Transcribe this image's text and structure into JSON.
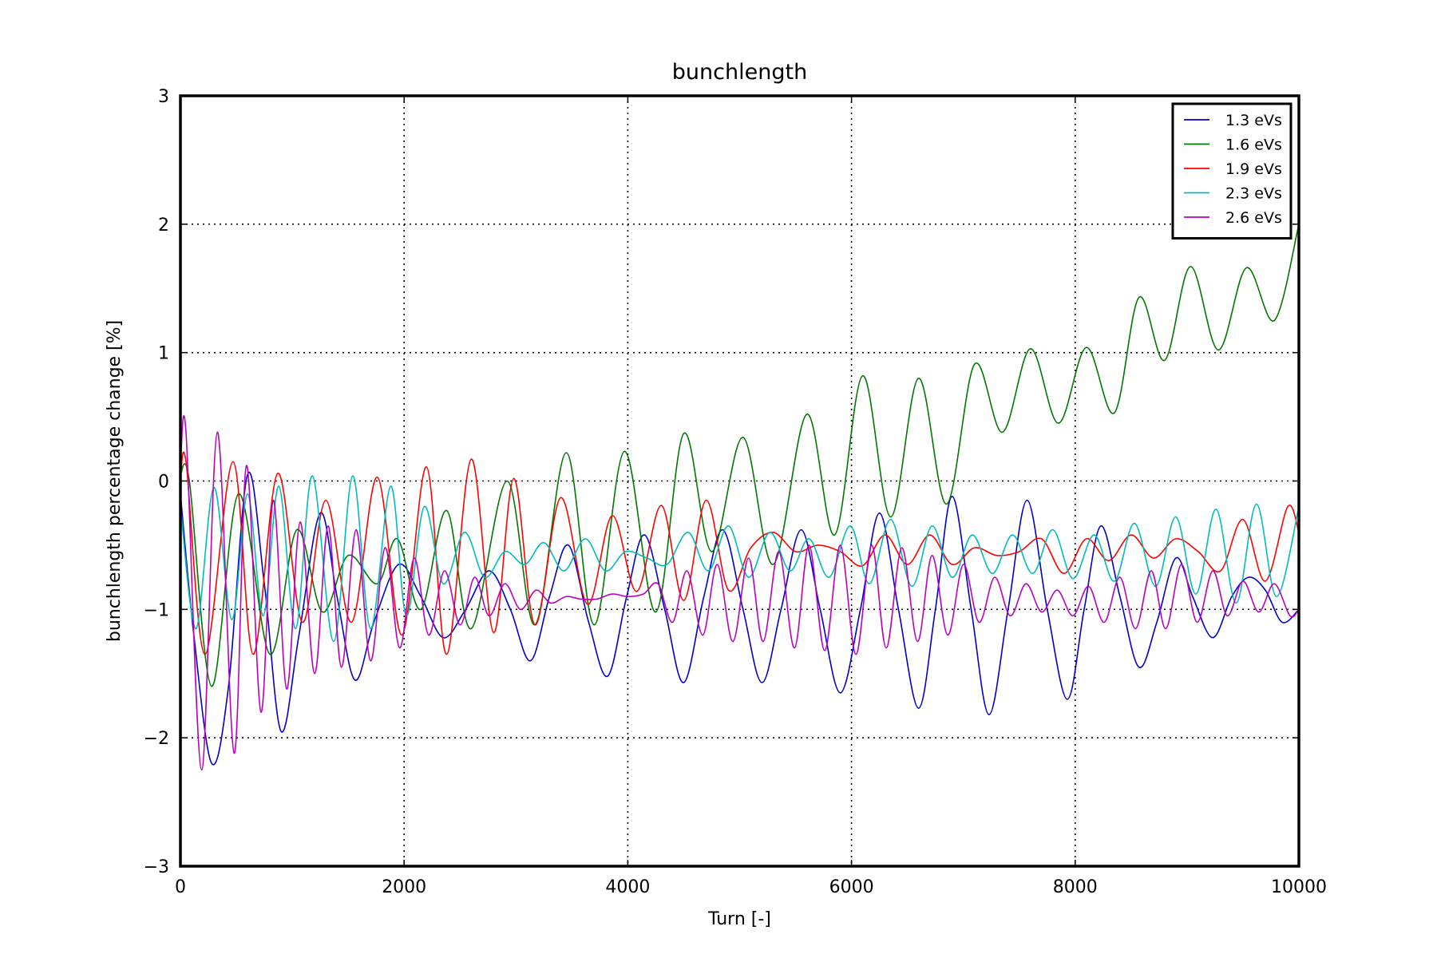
{
  "chart_data": {
    "type": "line",
    "title": "bunchlength",
    "xlabel": "Turn [-]",
    "ylabel": "bunchlength percentage change [%]",
    "xlim": [
      0,
      10000
    ],
    "ylim": [
      -3,
      3
    ],
    "xticks": [
      0,
      2000,
      4000,
      6000,
      8000,
      10000
    ],
    "yticks": [
      -3,
      -2,
      -1,
      0,
      1,
      2,
      3
    ],
    "xtick_labels": [
      "0",
      "2000",
      "4000",
      "6000",
      "8000",
      "10000"
    ],
    "ytick_labels": [
      "−3",
      "−2",
      "−1",
      "0",
      "1",
      "2",
      "3"
    ],
    "grid": true,
    "legend_position": "top-right",
    "series": [
      {
        "name": "1.3 eVs",
        "color": "#0000cc",
        "x": [
          0,
          120,
          280,
          430,
          600,
          750,
          900,
          1060,
          1250,
          1400,
          1560,
          1730,
          1950,
          2150,
          2350,
          2550,
          2760,
          2950,
          3130,
          3300,
          3470,
          3650,
          3820,
          3990,
          4150,
          4330,
          4500,
          4680,
          4850,
          5030,
          5200,
          5370,
          5550,
          5720,
          5900,
          6080,
          6250,
          6420,
          6600,
          6750,
          6900,
          7070,
          7230,
          7400,
          7570,
          7750,
          7930,
          8080,
          8230,
          8400,
          8570,
          8730,
          8900,
          9050,
          9230,
          9400,
          9550,
          9700,
          9850,
          10000
        ],
        "y": [
          -0.1,
          -1.2,
          -2.2,
          -1.6,
          0.05,
          -0.8,
          -1.95,
          -1.2,
          -0.25,
          -0.9,
          -1.55,
          -1.1,
          -0.65,
          -0.9,
          -1.22,
          -1.0,
          -0.7,
          -1.0,
          -1.4,
          -0.9,
          -0.5,
          -1.1,
          -1.52,
          -0.9,
          -0.42,
          -1.0,
          -1.57,
          -0.9,
          -0.38,
          -1.0,
          -1.57,
          -1.0,
          -0.38,
          -1.0,
          -1.65,
          -1.0,
          -0.25,
          -1.0,
          -1.77,
          -1.0,
          -0.12,
          -1.0,
          -1.82,
          -1.0,
          -0.15,
          -1.0,
          -1.7,
          -1.0,
          -0.35,
          -0.9,
          -1.45,
          -1.1,
          -0.6,
          -0.9,
          -1.22,
          -0.9,
          -0.75,
          -0.85,
          -1.1,
          -1.0
        ]
      },
      {
        "name": "1.6 eVs",
        "color": "#007700",
        "x": [
          0,
          80,
          280,
          520,
          800,
          1040,
          1270,
          1500,
          1760,
          1940,
          2150,
          2380,
          2600,
          2920,
          3170,
          3450,
          3700,
          3970,
          4250,
          4500,
          4750,
          5030,
          5300,
          5600,
          5850,
          6100,
          6350,
          6600,
          6850,
          7100,
          7350,
          7600,
          7850,
          8100,
          8350,
          8570,
          8800,
          9030,
          9280,
          9530,
          9780,
          10000
        ],
        "y": [
          0.05,
          0.0,
          -1.6,
          -0.1,
          -1.35,
          -0.38,
          -1.02,
          -0.58,
          -0.8,
          -0.45,
          -1.0,
          -0.23,
          -1.15,
          -0.0,
          -1.12,
          0.22,
          -1.12,
          0.23,
          -1.02,
          0.37,
          -0.55,
          0.34,
          -0.65,
          0.52,
          -0.42,
          0.82,
          -0.28,
          0.8,
          -0.18,
          0.91,
          0.38,
          1.03,
          0.45,
          1.04,
          0.53,
          1.43,
          0.94,
          1.67,
          1.02,
          1.66,
          1.25,
          2.0
        ]
      },
      {
        "name": "1.9 eVs",
        "color": "#ff0000",
        "x": [
          0,
          50,
          220,
          470,
          650,
          870,
          1090,
          1300,
          1530,
          1760,
          1980,
          2200,
          2380,
          2600,
          2800,
          2980,
          3170,
          3400,
          3640,
          3860,
          4080,
          4300,
          4500,
          4700,
          4900,
          5100,
          5300,
          5500,
          5700,
          5900,
          6100,
          6300,
          6500,
          6700,
          6900,
          7100,
          7300,
          7500,
          7700,
          7900,
          8100,
          8300,
          8500,
          8700,
          8900,
          9100,
          9300,
          9500,
          9700,
          9900,
          10000
        ],
        "y": [
          0.0,
          0.15,
          -1.35,
          0.15,
          -1.35,
          0.06,
          -1.1,
          -0.15,
          -1.1,
          0.03,
          -1.2,
          0.11,
          -1.35,
          0.17,
          -1.18,
          0.02,
          -1.12,
          -0.13,
          -0.96,
          -0.27,
          -0.86,
          -0.19,
          -0.93,
          -0.15,
          -0.85,
          -0.52,
          -0.4,
          -0.55,
          -0.5,
          -0.55,
          -0.66,
          -0.42,
          -0.65,
          -0.42,
          -0.65,
          -0.52,
          -0.58,
          -0.55,
          -0.45,
          -0.72,
          -0.45,
          -0.62,
          -0.42,
          -0.6,
          -0.45,
          -0.55,
          -0.7,
          -0.3,
          -0.78,
          -0.2,
          -0.4
        ]
      },
      {
        "name": "2.3 eVs",
        "color": "#00bbbb",
        "x": [
          0,
          140,
          300,
          460,
          600,
          740,
          880,
          1030,
          1180,
          1370,
          1540,
          1700,
          1880,
          2020,
          2180,
          2350,
          2540,
          2720,
          2900,
          3080,
          3250,
          3430,
          3620,
          3800,
          3980,
          4170,
          4350,
          4540,
          4720,
          4900,
          5080,
          5270,
          5450,
          5620,
          5800,
          5990,
          6160,
          6350,
          6540,
          6720,
          6900,
          7080,
          7260,
          7440,
          7620,
          7800,
          7980,
          8170,
          8350,
          8530,
          8720,
          8900,
          9080,
          9260,
          9440,
          9620,
          9800,
          10000
        ],
        "y": [
          -0.2,
          -1.15,
          -0.05,
          -1.08,
          -0.1,
          -1.05,
          -0.04,
          -1.15,
          0.04,
          -1.25,
          0.04,
          -1.15,
          -0.04,
          -1.05,
          -0.2,
          -0.8,
          -0.4,
          -0.75,
          -0.55,
          -0.65,
          -0.48,
          -0.7,
          -0.45,
          -0.7,
          -0.55,
          -0.6,
          -0.65,
          -0.4,
          -0.7,
          -0.35,
          -0.75,
          -0.4,
          -0.7,
          -0.45,
          -0.75,
          -0.35,
          -0.8,
          -0.3,
          -0.82,
          -0.35,
          -0.75,
          -0.42,
          -0.72,
          -0.42,
          -0.72,
          -0.38,
          -0.76,
          -0.42,
          -0.78,
          -0.33,
          -0.82,
          -0.28,
          -0.88,
          -0.22,
          -0.95,
          -0.18,
          -0.9,
          -0.2
        ]
      },
      {
        "name": "2.6 eVs",
        "color": "#bb00bb",
        "x": [
          0,
          50,
          190,
          330,
          480,
          590,
          720,
          830,
          950,
          1070,
          1200,
          1320,
          1440,
          1570,
          1700,
          1830,
          1960,
          2090,
          2220,
          2360,
          2500,
          2630,
          2760,
          2900,
          3040,
          3180,
          3310,
          3450,
          3580,
          3720,
          3860,
          4000,
          4140,
          4270,
          4400,
          4530,
          4670,
          4800,
          4940,
          5080,
          5210,
          5350,
          5490,
          5620,
          5760,
          5900,
          6040,
          6180,
          6310,
          6450,
          6590,
          6720,
          6860,
          7000,
          7140,
          7280,
          7420,
          7560,
          7700,
          7840,
          7980,
          8120,
          8260,
          8400,
          8540,
          8680,
          8810,
          8950,
          9090,
          9230,
          9360,
          9500,
          9640,
          9780,
          9920,
          10000
        ],
        "y": [
          0.1,
          0.38,
          -2.25,
          0.38,
          -2.12,
          0.12,
          -1.8,
          -0.15,
          -1.62,
          -0.32,
          -1.5,
          -0.35,
          -1.45,
          -0.38,
          -1.4,
          -0.52,
          -1.3,
          -0.6,
          -1.2,
          -0.7,
          -1.12,
          -0.75,
          -1.05,
          -0.8,
          -1.0,
          -0.85,
          -0.95,
          -0.9,
          -0.92,
          -0.92,
          -0.88,
          -0.9,
          -0.88,
          -0.8,
          -1.1,
          -0.7,
          -1.2,
          -0.65,
          -1.25,
          -0.6,
          -1.25,
          -0.55,
          -1.3,
          -0.5,
          -1.32,
          -0.5,
          -1.35,
          -0.5,
          -1.3,
          -0.52,
          -1.25,
          -0.58,
          -1.2,
          -0.65,
          -1.1,
          -0.75,
          -1.05,
          -0.8,
          -1.02,
          -0.85,
          -1.05,
          -0.82,
          -1.1,
          -0.75,
          -1.15,
          -0.7,
          -1.15,
          -0.65,
          -1.1,
          -0.7,
          -1.05,
          -0.78,
          -1.02,
          -0.8,
          -1.05,
          -1.0
        ]
      }
    ]
  }
}
